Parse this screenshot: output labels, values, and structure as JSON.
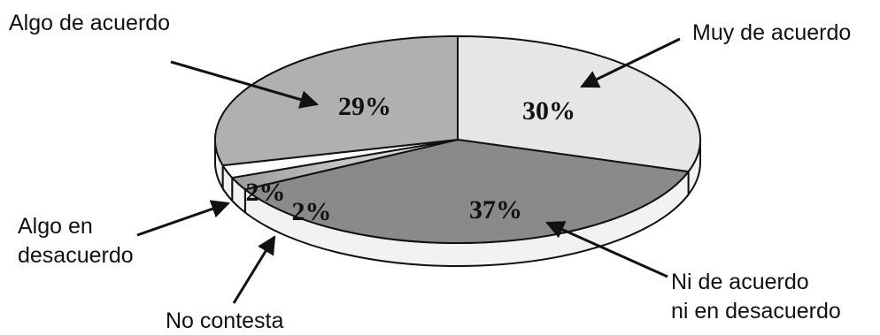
{
  "chart_data": {
    "type": "pie",
    "title": "",
    "slices": [
      {
        "label": "Muy de acuerdo",
        "value": 30,
        "value_label": "30%",
        "color": "#e6e6e6"
      },
      {
        "label": "Ni de acuerdo\nni en desacuerdo",
        "value": 37,
        "value_label": "37%",
        "color": "#8a8a8a"
      },
      {
        "label": "No contesta",
        "value": 2,
        "value_label": "2%",
        "color": "#c8c8c8"
      },
      {
        "label": "Algo en\ndesacuerdo",
        "value": 2,
        "value_label": "2%",
        "color": "#ffffff"
      },
      {
        "label": "Algo de acuerdo",
        "value": 29,
        "value_label": "29%",
        "color": "#b0b0b0"
      }
    ],
    "legend": "none",
    "style": "3d-exploded-labels-with-arrows"
  }
}
